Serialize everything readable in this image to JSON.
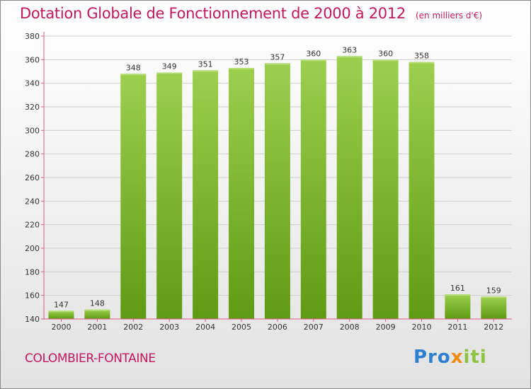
{
  "title": "Dotation Globale de Fonctionnement de 2000 à 2012",
  "subtitle": "(en milliers d'€)",
  "commune": "COLOMBIER-FONTAINE",
  "logo": {
    "p1": "Pro",
    "p2": "x",
    "p3": "iti"
  },
  "colors": {
    "title": "#c2185b",
    "bar_top": "#9ccf4e",
    "bar_bottom": "#5f9b12",
    "axis": "#e05a8c",
    "text": "#333333"
  },
  "chart_data": {
    "type": "bar",
    "categories": [
      "2000",
      "2001",
      "2002",
      "2003",
      "2004",
      "2005",
      "2006",
      "2007",
      "2008",
      "2009",
      "2010",
      "2011",
      "2012"
    ],
    "values": [
      147,
      148,
      348,
      349,
      351,
      353,
      357,
      360,
      363,
      360,
      358,
      161,
      159
    ],
    "ylim": [
      140,
      380
    ],
    "yticks": [
      140,
      160,
      180,
      200,
      220,
      240,
      260,
      280,
      300,
      320,
      340,
      360,
      380
    ],
    "grid": true,
    "legend": "none"
  }
}
